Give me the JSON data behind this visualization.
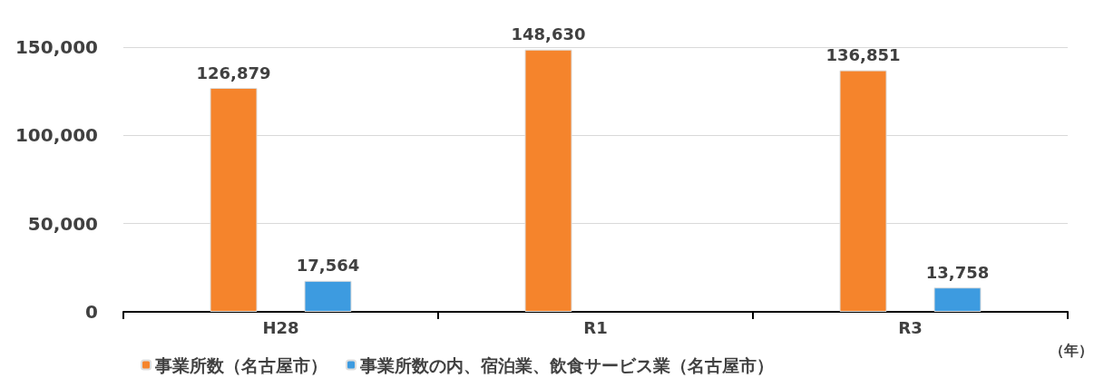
{
  "chart_data": {
    "type": "bar",
    "xlabel": "（年）",
    "categories": [
      "H28",
      "R1",
      "R3"
    ],
    "series": [
      {
        "name": "事業所数（名古屋市）",
        "color": "#f5842c",
        "values": [
          126879,
          148630,
          136851
        ],
        "value_labels": [
          "126,879",
          "148,630",
          "136,851"
        ]
      },
      {
        "name": "事業所数の内、宿泊業、飲食サービス業（名古屋市）",
        "color": "#3d9be0",
        "values": [
          17564,
          null,
          13758
        ],
        "value_labels": [
          "17,564",
          null,
          "13,758"
        ]
      }
    ],
    "ylim": [
      0,
      150000
    ],
    "yticks": [
      0,
      {
        "value": 50000,
        "label": "50,000"
      },
      {
        "value": 100000,
        "label": "100,000"
      },
      {
        "value": 150000,
        "label": "150,000"
      }
    ],
    "grid": "y",
    "legend": "bottom"
  }
}
